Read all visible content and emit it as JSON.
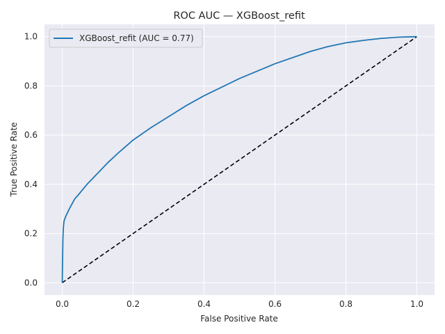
{
  "chart_data": {
    "type": "line",
    "title": "ROC AUC — XGBoost_refit",
    "xlabel": "False Positive Rate",
    "ylabel": "True Positive Rate",
    "xlim": [
      -0.05,
      1.05
    ],
    "ylim": [
      -0.05,
      1.05
    ],
    "xticks": [
      0.0,
      0.2,
      0.4,
      0.6,
      0.8,
      1.0
    ],
    "yticks": [
      0.0,
      0.2,
      0.4,
      0.6,
      0.8,
      1.0
    ],
    "xtick_labels": [
      "0.0",
      "0.2",
      "0.4",
      "0.6",
      "0.8",
      "1.0"
    ],
    "ytick_labels": [
      "0.0",
      "0.2",
      "0.4",
      "0.6",
      "0.8",
      "1.0"
    ],
    "grid": true,
    "legend_position": "top-left",
    "background_color": "#eaeaf2",
    "series": [
      {
        "name": "XGBoost_refit (AUC = 0.77)",
        "color": "#1f77b4",
        "style": "solid",
        "x": [
          0.0,
          0.001,
          0.002,
          0.003,
          0.005,
          0.01,
          0.02,
          0.035,
          0.05,
          0.07,
          0.1,
          0.13,
          0.16,
          0.2,
          0.25,
          0.3,
          0.35,
          0.4,
          0.45,
          0.5,
          0.55,
          0.6,
          0.65,
          0.7,
          0.75,
          0.8,
          0.85,
          0.9,
          0.95,
          1.0
        ],
        "y": [
          0.0,
          0.1,
          0.18,
          0.22,
          0.25,
          0.27,
          0.3,
          0.34,
          0.365,
          0.4,
          0.445,
          0.49,
          0.53,
          0.58,
          0.63,
          0.675,
          0.72,
          0.76,
          0.795,
          0.83,
          0.86,
          0.89,
          0.915,
          0.94,
          0.96,
          0.975,
          0.985,
          0.993,
          0.998,
          1.0
        ]
      },
      {
        "name": "",
        "color": "#000000",
        "style": "dashed",
        "x": [
          0.0,
          1.0
        ],
        "y": [
          0.0,
          1.0
        ]
      }
    ]
  }
}
